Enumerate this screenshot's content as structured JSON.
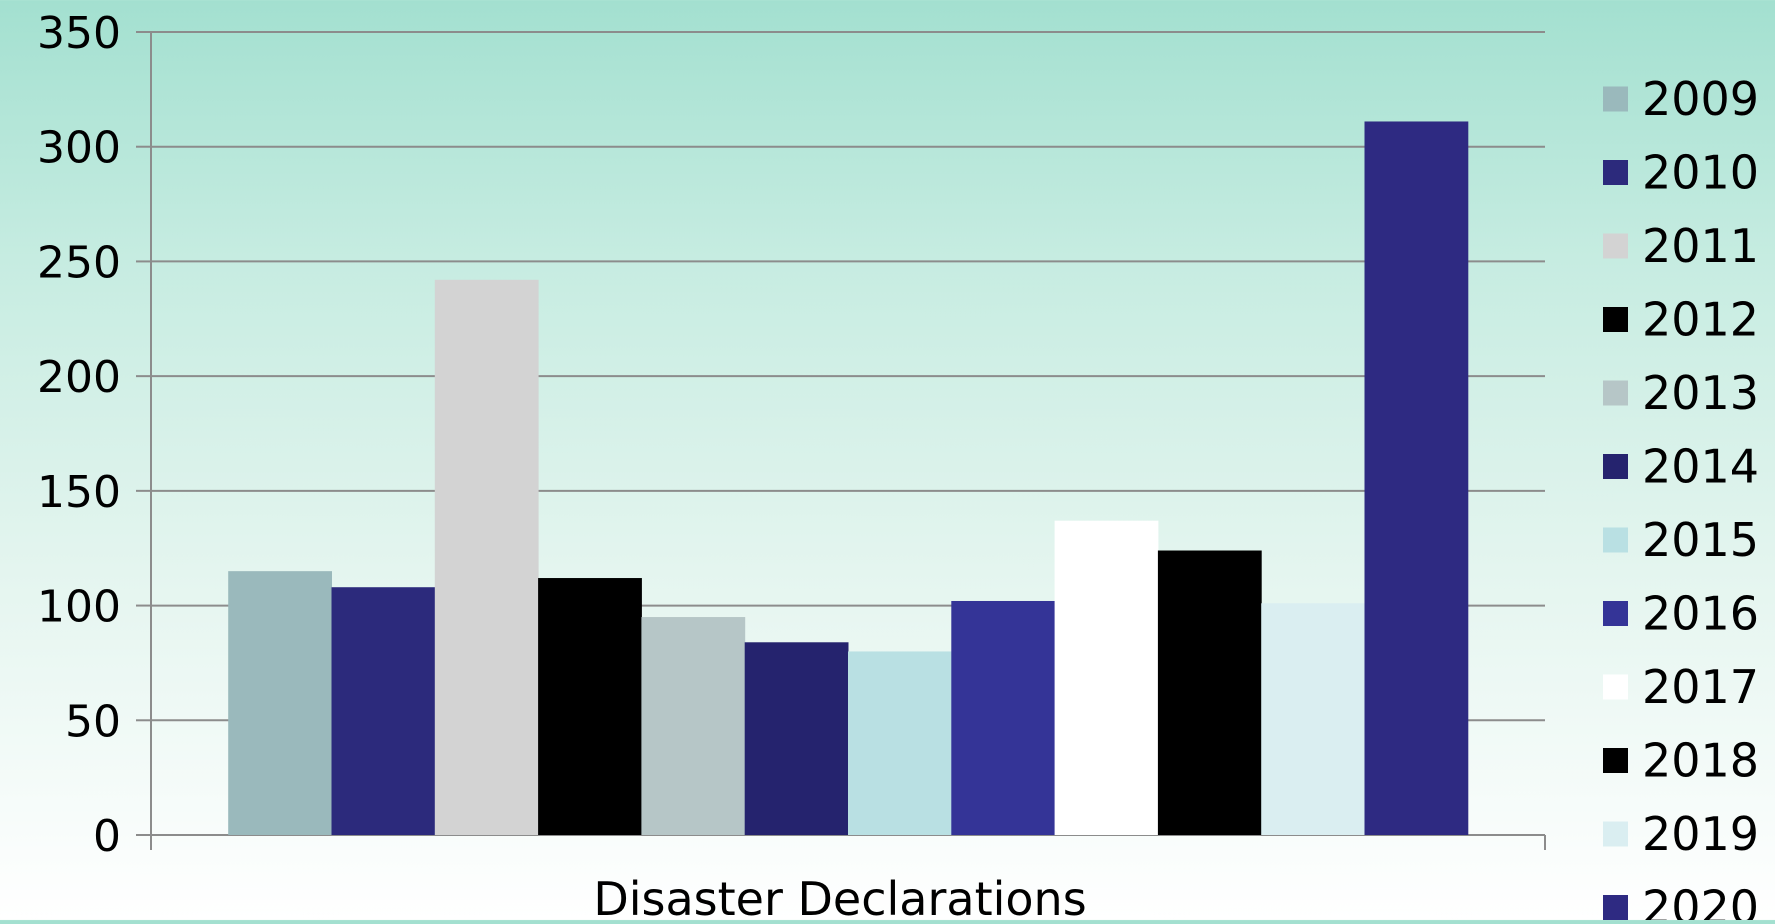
{
  "chart_data": {
    "type": "bar",
    "xlabel": "Disaster Declarations",
    "ylabel": "",
    "ylim": [
      0,
      350
    ],
    "yticks": [
      0,
      50,
      100,
      150,
      200,
      250,
      300,
      350
    ],
    "ytick_labels": [
      "0",
      "50",
      "100",
      "150",
      "200",
      "250",
      "300",
      "350"
    ],
    "grid": true,
    "legend_position": "right",
    "categories": [
      "Disaster Declarations"
    ],
    "series": [
      {
        "name": "2009",
        "values": [
          115
        ],
        "color": "#9ab9bc"
      },
      {
        "name": "2010",
        "values": [
          108
        ],
        "color": "#2c2a7c"
      },
      {
        "name": "2011",
        "values": [
          242
        ],
        "color": "#d3d3d3"
      },
      {
        "name": "2012",
        "values": [
          112
        ],
        "color": "#000000"
      },
      {
        "name": "2013",
        "values": [
          95
        ],
        "color": "#b6c6c7"
      },
      {
        "name": "2014",
        "values": [
          84
        ],
        "color": "#25236e"
      },
      {
        "name": "2015",
        "values": [
          80
        ],
        "color": "#b9e0e3"
      },
      {
        "name": "2016",
        "values": [
          102
        ],
        "color": "#343497"
      },
      {
        "name": "2017",
        "values": [
          137
        ],
        "color": "#ffffff"
      },
      {
        "name": "2018",
        "values": [
          124
        ],
        "color": "#000000"
      },
      {
        "name": "2019",
        "values": [
          101
        ],
        "color": "#daeef1"
      },
      {
        "name": "2020",
        "values": [
          311
        ],
        "color": "#2e2a82"
      }
    ]
  },
  "colors": {
    "gridline": "#8c8c8c",
    "axis": "#8c8c8c"
  }
}
